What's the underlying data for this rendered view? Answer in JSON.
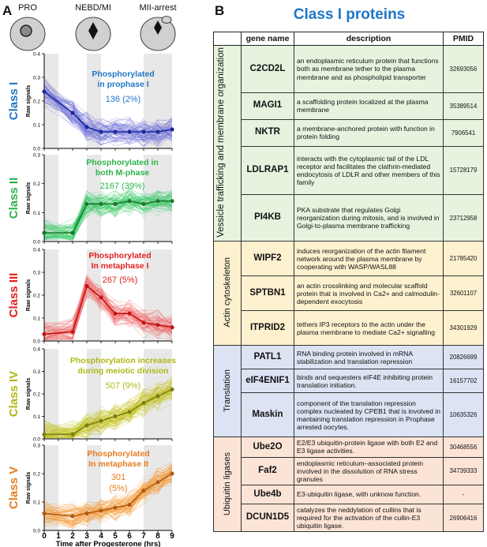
{
  "panel_a_label": "A",
  "panel_b_label": "B",
  "stages": [
    "PRO",
    "NEBD/MI",
    "MII-arrest"
  ],
  "x_axis_label": "Time after Progesterone (hrs)",
  "x_ticks": [
    "0",
    "1",
    "2",
    "3",
    "4",
    "5",
    "6",
    "7",
    "8",
    "9"
  ],
  "y_axis_label": "Raw signals",
  "chart_data": [
    {
      "type": "line",
      "class_label": "Class I",
      "color": "#6f6fd8",
      "mean_color": "#1a2a9a",
      "text_color": "#1f77c8",
      "annotation": "Phosphorylated in prophase I",
      "count": "136 (2%)",
      "x": [
        0,
        2,
        3,
        4,
        5,
        6,
        7,
        8,
        9
      ],
      "values": [
        0.24,
        0.15,
        0.09,
        0.07,
        0.07,
        0.07,
        0.07,
        0.07,
        0.08
      ],
      "ylim": [
        0,
        0.4
      ],
      "yticks": [
        "0.0",
        "0.1",
        "0.2",
        "0.3",
        "0.4"
      ]
    },
    {
      "type": "line",
      "class_label": "Class II",
      "color": "#3ec96b",
      "mean_color": "#1a7a2a",
      "text_color": "#2cb34a",
      "annotation": "Phosphorylated in both M-phase",
      "count": "2167 (39%)",
      "x": [
        0,
        2,
        3,
        4,
        5,
        6,
        7,
        8,
        9
      ],
      "values": [
        0.03,
        0.03,
        0.13,
        0.13,
        0.13,
        0.14,
        0.13,
        0.14,
        0.14
      ],
      "ylim": [
        0,
        0.3
      ],
      "yticks": [
        "0.0",
        "0.1",
        "0.2",
        "0.3"
      ]
    },
    {
      "type": "line",
      "class_label": "Class III",
      "color": "#f06a6a",
      "mean_color": "#c41414",
      "text_color": "#e02020",
      "annotation": "Phosphorylated In metaphase I",
      "count": "267 (5%)",
      "x": [
        0,
        2,
        3,
        4,
        5,
        6,
        7,
        8,
        9
      ],
      "values": [
        0.03,
        0.04,
        0.24,
        0.19,
        0.12,
        0.12,
        0.08,
        0.07,
        0.06
      ],
      "ylim": [
        0,
        0.4
      ],
      "yticks": [
        "0.0",
        "0.1",
        "0.2",
        "0.3",
        "0.4"
      ]
    },
    {
      "type": "line",
      "class_label": "Class IV",
      "color": "#c2c21a",
      "mean_color": "#7e7e10",
      "text_color": "#b0b818",
      "annotation": "Phosphorylation increases during meiotic division",
      "count": "507 (9%)",
      "x": [
        0,
        2,
        3,
        4,
        5,
        6,
        7,
        8,
        9
      ],
      "values": [
        0.02,
        0.02,
        0.06,
        0.08,
        0.1,
        0.12,
        0.16,
        0.19,
        0.22
      ],
      "ylim": [
        0,
        0.4
      ],
      "yticks": [
        "0.0",
        "0.1",
        "0.2",
        "0.3",
        "0.4"
      ]
    },
    {
      "type": "line",
      "class_label": "Class V",
      "color": "#f39c3a",
      "mean_color": "#b25a10",
      "text_color": "#e67e22",
      "annotation": "Phosphorylated In metaphase II",
      "count": "301 (5%)",
      "x": [
        0,
        2,
        3,
        4,
        5,
        6,
        7,
        8,
        9
      ],
      "values": [
        0.06,
        0.05,
        0.06,
        0.07,
        0.08,
        0.09,
        0.14,
        0.17,
        0.2
      ],
      "ylim": [
        0,
        0.3
      ],
      "yticks": [
        "0.0",
        "0.1",
        "0.2",
        "0.3"
      ]
    }
  ],
  "table": {
    "title": "Class I proteins",
    "headers": {
      "gene": "gene name",
      "desc": "description",
      "pmid": "PMID"
    },
    "groups": [
      {
        "category": "Vessicle trafficking and membrane organization",
        "color": "#e6f4df",
        "rows": [
          {
            "gene": "C2CD2L",
            "desc": "an endoplasmic reticulum protein that functions both as membrane tether to the plasma membrane and as phospholipid transporter",
            "pmid": "32693056"
          },
          {
            "gene": "MAGI1",
            "desc": "a scaffolding protein localized at the plasma membrane",
            "pmid": "35389514"
          },
          {
            "gene": "NKTR",
            "desc": "a membrane-anchored protein with function in protein folding",
            "pmid": "7906541"
          },
          {
            "gene": "LDLRAP1",
            "desc": "interacts with the cytoplasmic tail of the LDL receptor and facilitates the clathrin-mediated endocytosis of LDLR and other members of this family",
            "pmid": "15728179"
          },
          {
            "gene": "PI4KB",
            "desc": "PKA substrate that regulates Golgi reorganization during mitosis, and is involved in Golgi-to-plasma  membrane trafficking",
            "pmid": "23712958"
          }
        ]
      },
      {
        "category": "Actin cytoskeleton",
        "color": "#fdf1cf",
        "rows": [
          {
            "gene": "WIPF2",
            "desc": "induces reorganization of the actin filament network around the plasma membrane by cooperating with WASP/WASL88",
            "pmid": "21785420"
          },
          {
            "gene": "SPTBN1",
            "desc": "an actin crosslinking and molecular scaffold protein that is involved  in Ca2+ and calmodulin-dependent exocytosis",
            "pmid": "32601107"
          },
          {
            "gene": "ITPRID2",
            "desc": "tethers IP3 receptors to the actin under the plasma membrane to  mediate Ca2+ signalling",
            "pmid": "34301929"
          }
        ]
      },
      {
        "category": "Translation",
        "color": "#dce3f3",
        "rows": [
          {
            "gene": "PATL1",
            "desc": "RNA binding protein involved in mRNA stabilization and translation repression",
            "pmid": "20826699"
          },
          {
            "gene": "eIF4ENIF1",
            "desc": "binds and sequesters eIF4E inhibiting protein translation initiation.",
            "pmid": "16157702"
          },
          {
            "gene": "Maskin",
            "desc": "component of the translation repression complex nucleated by CPEB1 that is involved in mantaining translation repression in Prophase arrested oocytes.",
            "pmid": "10635326"
          }
        ]
      },
      {
        "category": "Ubiquitin ligases",
        "color": "#fbe4d6",
        "rows": [
          {
            "gene": "Ube2O",
            "desc": "E2/E3 ubiquitin-protein ligase with both E2 and E3 ligase activities.",
            "pmid": "30468556"
          },
          {
            "gene": "Faf2",
            "desc": "endoplasmic reticulum–associated protein involved in the dissolution of RNA stress granules",
            "pmid": "34739333"
          },
          {
            "gene": "Ube4b",
            "desc": "E3-ubiquitin ligase, with unknow function.",
            "pmid": "-"
          },
          {
            "gene": "DCUN1D5",
            "desc": "catalyzes the neddylation of cullins that is required for the activation of the cullin-E3 ubiquitin ligase.",
            "pmid": "26906416"
          }
        ]
      }
    ]
  }
}
